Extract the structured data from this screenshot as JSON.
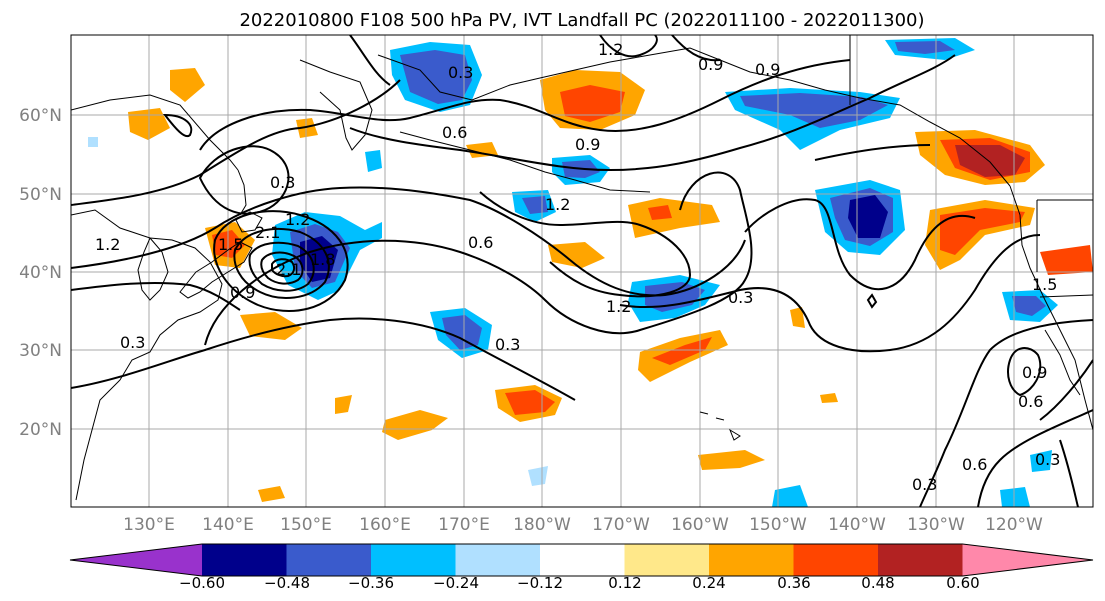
{
  "title": "2022010800 F108 500 hPa PV, IVT Landfall PC (2022011100 - 2022011300)",
  "lat_labels": [
    "60°N",
    "50°N",
    "40°N",
    "30°N",
    "20°N"
  ],
  "lon_labels": [
    "130°E",
    "140°E",
    "150°E",
    "160°E",
    "170°E",
    "180°W",
    "170°W",
    "160°W",
    "150°W",
    "140°W",
    "130°W",
    "120°W"
  ],
  "colorbar": {
    "colors": [
      "#9932cc",
      "#00008b",
      "#3a5bcc",
      "#00bfff",
      "#b0e0ff",
      "#ffffff",
      "#ffe88a",
      "#ffa500",
      "#ff4500",
      "#b22222",
      "#ff88aa"
    ],
    "ticks": [
      "−0.60",
      "−0.48",
      "−0.36",
      "−0.24",
      "−0.12",
      "0.12",
      "0.24",
      "0.36",
      "0.48",
      "0.60"
    ]
  },
  "contour_labels": [
    "0.3",
    "0.3",
    "0.3",
    "0.3",
    "0.3",
    "0.3",
    "0.6",
    "0.6",
    "0.6",
    "0.6",
    "0.9",
    "0.9",
    "0.9",
    "0.9",
    "1.2",
    "1.2",
    "1.2",
    "1.2",
    "1.2",
    "1.5",
    "1.8",
    "2.1",
    "2.1",
    "1.5",
    "0.9",
    "0.3"
  ]
}
